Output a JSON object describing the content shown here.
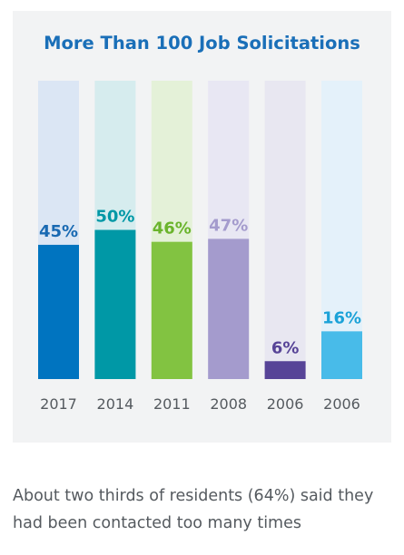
{
  "chart_data": {
    "type": "bar",
    "title": "More Than 100 Job Solicitations",
    "categories": [
      "2017",
      "2014",
      "2011",
      "2008",
      "2006",
      "2006"
    ],
    "values": [
      45,
      50,
      46,
      47,
      6,
      16
    ],
    "value_labels": [
      "45%",
      "50%",
      "46%",
      "47%",
      "6%",
      "16%"
    ],
    "ylim": [
      0,
      100
    ],
    "grid": false,
    "legend": "none",
    "colors": {
      "bar": [
        "#0074c0",
        "#0098a6",
        "#82c341",
        "#a49bcd",
        "#574497",
        "#48bbe9"
      ],
      "track": [
        "#dbe6f4",
        "#d6ecee",
        "#e4f1d8",
        "#e8e7f3",
        "#e8e7f1",
        "#e4f1fa"
      ],
      "label": [
        "#1869b2",
        "#0098a6",
        "#6ab42c",
        "#a49bcd",
        "#574497",
        "#1ba2d8"
      ]
    }
  },
  "caption": {
    "text": "About two thirds of residents (64%) said they had been contacted too many times"
  }
}
